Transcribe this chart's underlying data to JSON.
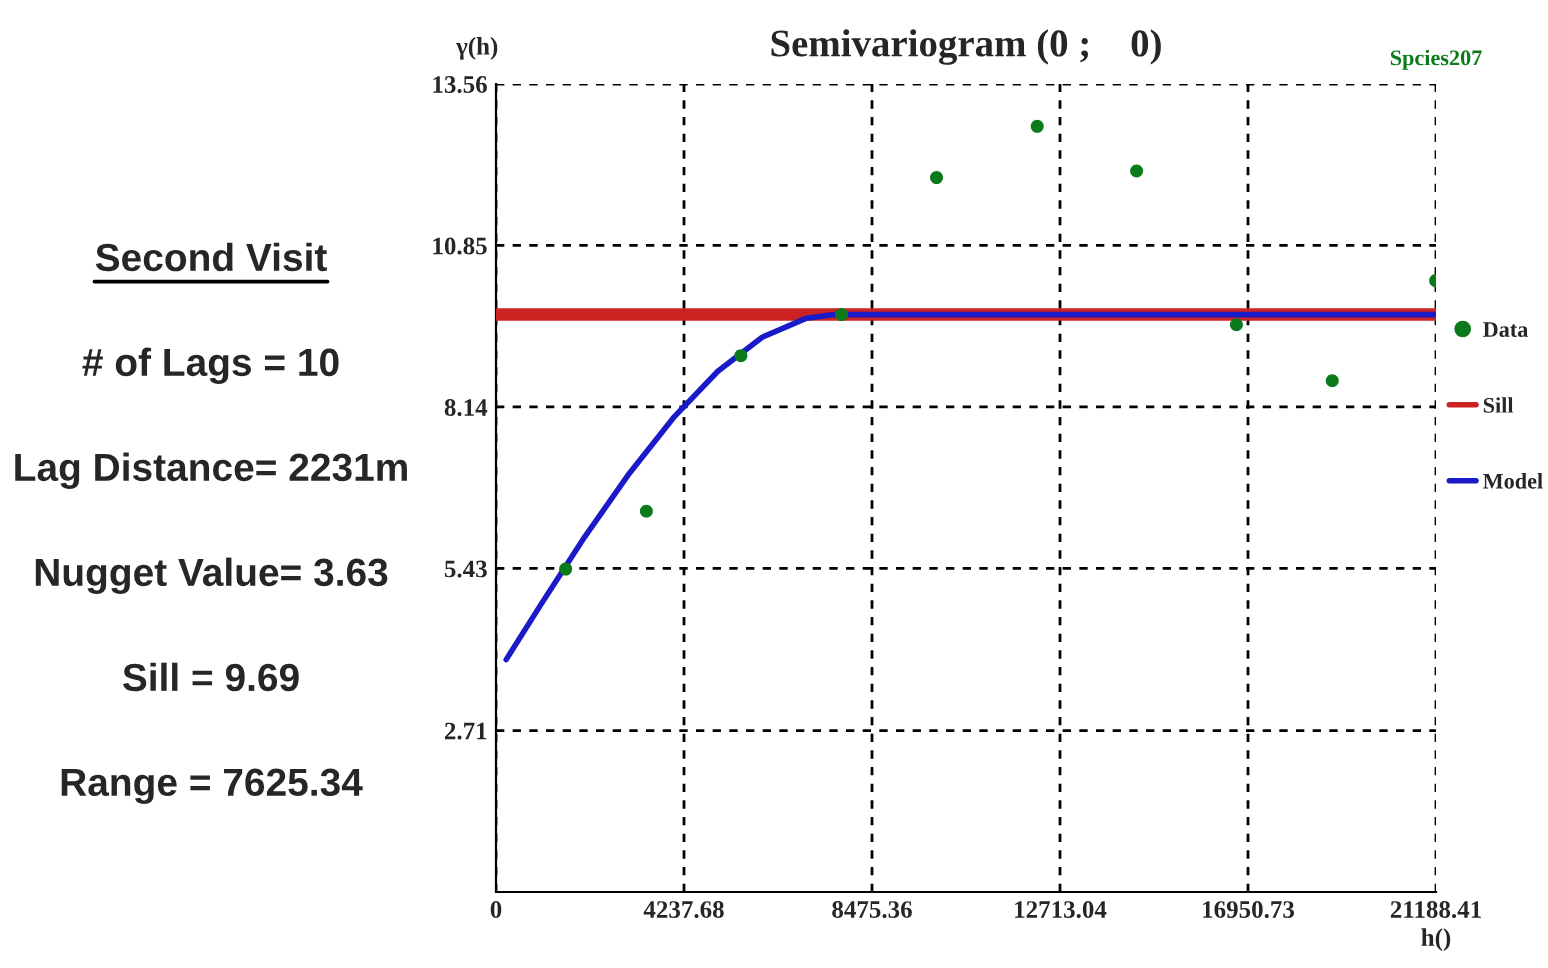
{
  "chart_data": [
    {
      "type": "other",
      "title": "Second Visit",
      "annotations": [
        "# of Lags = 10",
        "Lag Distance= 2231m",
        "Nugget Value= 3.63",
        "Sill = 9.69",
        "Range = 7625.34"
      ]
    },
    {
      "type": "scatter",
      "title": "Semivariogram (0 ;    0)",
      "xlabel": "h()",
      "ylabel": "γ(h)",
      "annotations": [
        "Spcies207"
      ],
      "xlim": [
        0,
        21188.41
      ],
      "xticks": [
        0,
        4237.68,
        8475.36,
        12713.04,
        16950.73,
        21188.41
      ],
      "ylim": [
        0,
        13.56
      ],
      "yticks": [
        2.71,
        5.43,
        8.14,
        10.85,
        13.56
      ],
      "grid": true,
      "legend": "right",
      "series": [
        {
          "name": "Data",
          "type": "scatter",
          "marker": "circle",
          "color": "#0a7a1a",
          "x": [
            1570,
            3390,
            5520,
            7790,
            9930,
            12200,
            14440,
            16690,
            18850,
            21180
          ],
          "values": [
            5.42,
            6.39,
            9.0,
            9.69,
            11.99,
            12.85,
            12.1,
            9.52,
            8.58,
            10.26
          ]
        },
        {
          "name": "Sill",
          "type": "line",
          "color": "#cc2222",
          "x": [
            0,
            21188.41
          ],
          "values": [
            9.69,
            9.69
          ]
        },
        {
          "name": "Model",
          "type": "line",
          "color": "#1a1ac8",
          "x": [
            230,
            1000,
            2000,
            3000,
            4000,
            5000,
            6000,
            7000,
            7625,
            21188.41
          ],
          "values": [
            3.9,
            4.81,
            5.96,
            7.02,
            7.96,
            8.74,
            9.31,
            9.63,
            9.69,
            9.69
          ]
        }
      ]
    }
  ]
}
